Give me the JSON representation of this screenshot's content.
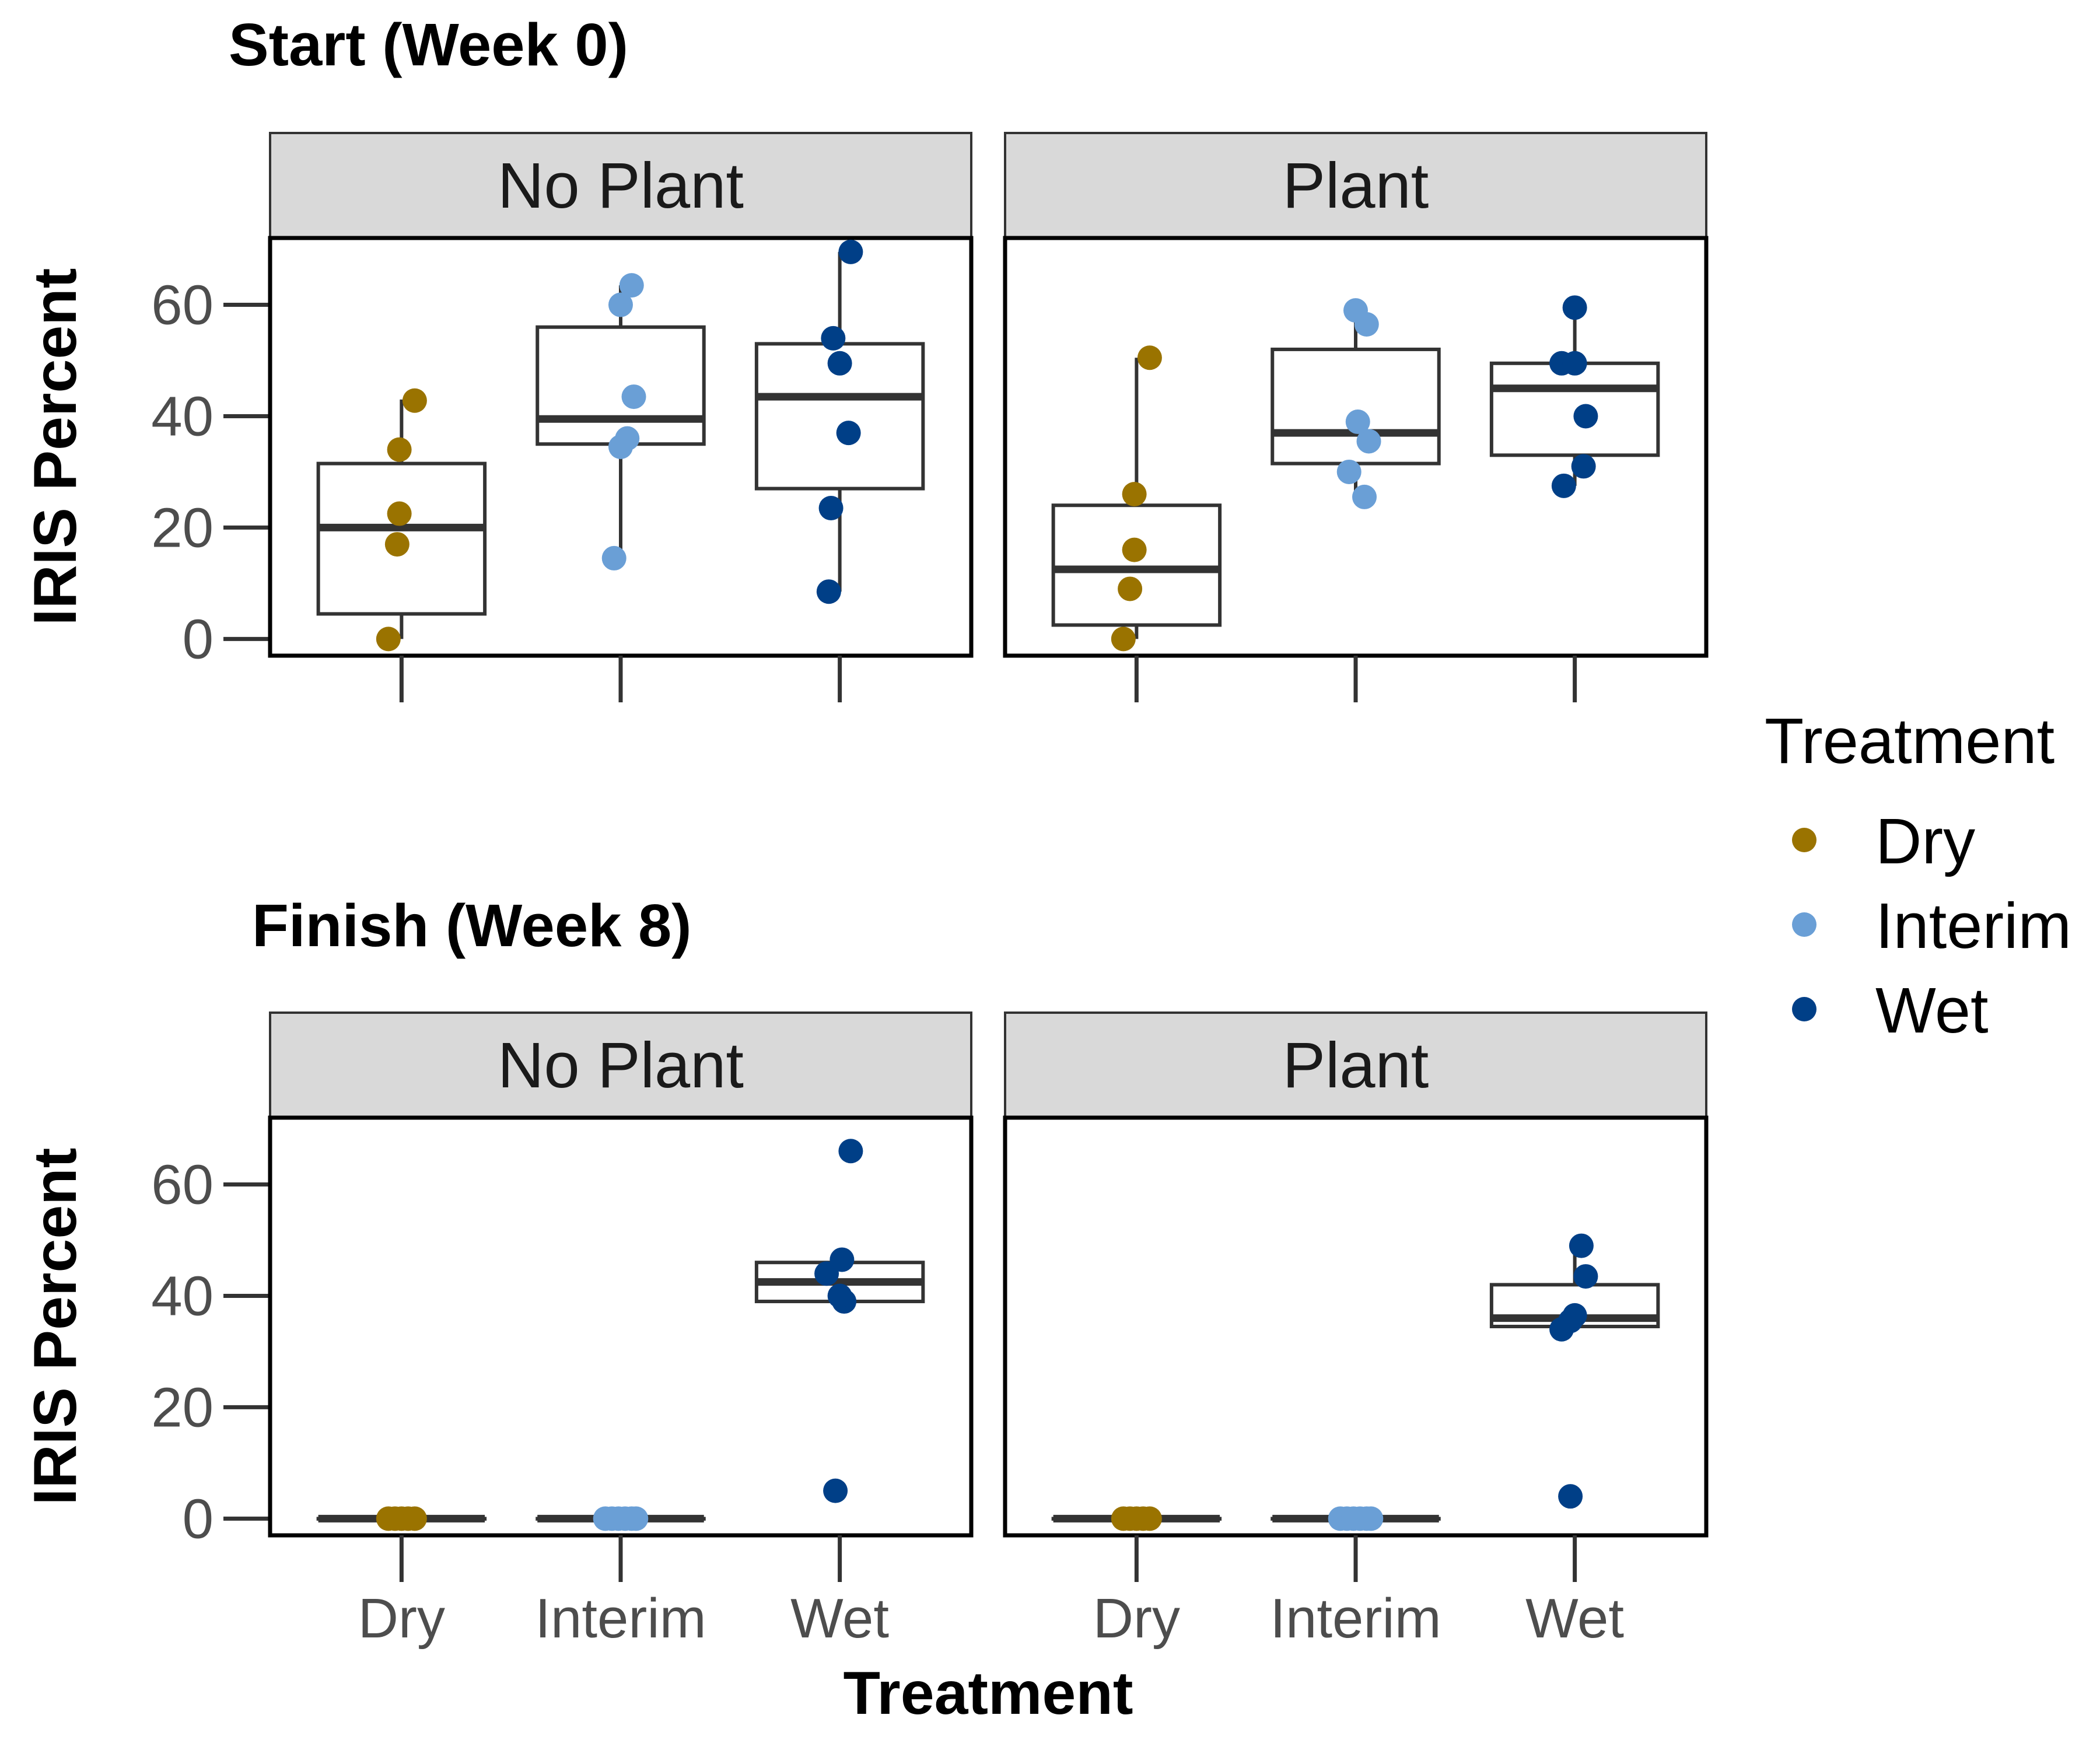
{
  "chart_data": {
    "type": "box",
    "y_axis_label": "IRIS Percent",
    "x_axis_label": "Treatment",
    "ylim": [
      -3,
      72
    ],
    "y_ticks": [
      0,
      20,
      40,
      60
    ],
    "categories": [
      "Dry",
      "Interim",
      "Wet"
    ],
    "legend": {
      "title": "Treatment",
      "placement": "right",
      "items": [
        {
          "label": "Dry",
          "color": "#9A7300"
        },
        {
          "label": "Interim",
          "color": "#6A9FD6"
        },
        {
          "label": "Wet",
          "color": "#003F87"
        }
      ]
    },
    "rows": [
      {
        "title": "Start (Week 0)",
        "panels": [
          {
            "strip": "No Plant",
            "groups": [
              {
                "category": "Dry",
                "box": {
                  "lower": 0,
                  "q1": 4.5,
                  "median": 20,
                  "q3": 31.5,
                  "upper": 43
                },
                "points": [
                  [
                    -0.06,
                    0
                  ],
                  [
                    -0.02,
                    17
                  ],
                  [
                    -0.01,
                    22.5
                  ],
                  [
                    -0.01,
                    34
                  ],
                  [
                    0.06,
                    42.8
                  ]
                ]
              },
              {
                "category": "Interim",
                "box": {
                  "lower": 14.5,
                  "q1": 35,
                  "median": 39.5,
                  "q3": 56,
                  "upper": 63.5
                },
                "points": [
                  [
                    -0.03,
                    14.5
                  ],
                  [
                    0.0,
                    34.5
                  ],
                  [
                    0.03,
                    36
                  ],
                  [
                    0.06,
                    43.5
                  ],
                  [
                    0.0,
                    60
                  ],
                  [
                    0.05,
                    63.5
                  ]
                ]
              },
              {
                "category": "Wet",
                "box": {
                  "lower": 8.5,
                  "q1": 27,
                  "median": 43.5,
                  "q3": 53,
                  "upper": 69.5
                },
                "points": [
                  [
                    -0.05,
                    8.5
                  ],
                  [
                    -0.04,
                    23.5
                  ],
                  [
                    0.04,
                    37
                  ],
                  [
                    0.0,
                    49.5
                  ],
                  [
                    -0.03,
                    54
                  ],
                  [
                    0.05,
                    69.5
                  ]
                ]
              }
            ]
          },
          {
            "strip": "Plant",
            "groups": [
              {
                "category": "Dry",
                "box": {
                  "lower": 0,
                  "q1": 2.5,
                  "median": 12.5,
                  "q3": 24,
                  "upper": 50.5
                },
                "points": [
                  [
                    -0.06,
                    0
                  ],
                  [
                    -0.03,
                    9
                  ],
                  [
                    -0.01,
                    16
                  ],
                  [
                    -0.01,
                    26
                  ],
                  [
                    0.06,
                    50.5
                  ]
                ]
              },
              {
                "category": "Interim",
                "box": {
                  "lower": 25.5,
                  "q1": 31.5,
                  "median": 37,
                  "q3": 52,
                  "upper": 59
                },
                "points": [
                  [
                    0.04,
                    25.5
                  ],
                  [
                    -0.03,
                    30
                  ],
                  [
                    0.06,
                    35.5
                  ],
                  [
                    0.01,
                    39
                  ],
                  [
                    0.05,
                    56.5
                  ],
                  [
                    0.0,
                    59
                  ]
                ]
              },
              {
                "category": "Wet",
                "box": {
                  "lower": 27.5,
                  "q1": 33,
                  "median": 45,
                  "q3": 49.5,
                  "upper": 59.5
                },
                "points": [
                  [
                    -0.05,
                    27.5
                  ],
                  [
                    0.04,
                    31
                  ],
                  [
                    0.05,
                    40
                  ],
                  [
                    -0.06,
                    49.5
                  ],
                  [
                    0.0,
                    49.5
                  ],
                  [
                    0.0,
                    59.5
                  ]
                ]
              }
            ]
          }
        ]
      },
      {
        "title": "Finish (Week 8)",
        "panels": [
          {
            "strip": "No Plant",
            "groups": [
              {
                "category": "Dry",
                "box": {
                  "lower": 0,
                  "q1": 0,
                  "median": 0,
                  "q3": 0,
                  "upper": 0
                },
                "points": [
                  [
                    -0.06,
                    0
                  ],
                  [
                    -0.03,
                    0
                  ],
                  [
                    0.0,
                    0
                  ],
                  [
                    0.03,
                    0
                  ],
                  [
                    0.06,
                    0
                  ]
                ]
              },
              {
                "category": "Interim",
                "box": {
                  "lower": 0,
                  "q1": 0,
                  "median": 0,
                  "q3": 0,
                  "upper": 0
                },
                "points": [
                  [
                    -0.07,
                    0
                  ],
                  [
                    -0.04,
                    0
                  ],
                  [
                    -0.01,
                    0
                  ],
                  [
                    0.02,
                    0
                  ],
                  [
                    0.05,
                    0
                  ],
                  [
                    0.07,
                    0
                  ]
                ]
              },
              {
                "category": "Wet",
                "box": {
                  "lower": 39,
                  "q1": 39,
                  "median": 42.5,
                  "q3": 46,
                  "upper": 46.5
                },
                "points": [
                  [
                    -0.02,
                    5
                  ],
                  [
                    0.02,
                    39
                  ],
                  [
                    0.0,
                    40
                  ],
                  [
                    -0.06,
                    44
                  ],
                  [
                    0.01,
                    46.5
                  ],
                  [
                    0.05,
                    66
                  ]
                ]
              }
            ]
          },
          {
            "strip": "Plant",
            "groups": [
              {
                "category": "Dry",
                "box": {
                  "lower": 0,
                  "q1": 0,
                  "median": 0,
                  "q3": 0,
                  "upper": 0
                },
                "points": [
                  [
                    -0.06,
                    0
                  ],
                  [
                    -0.03,
                    0
                  ],
                  [
                    0.0,
                    0
                  ],
                  [
                    0.03,
                    0
                  ],
                  [
                    0.06,
                    0
                  ]
                ]
              },
              {
                "category": "Interim",
                "box": {
                  "lower": 0,
                  "q1": 0,
                  "median": 0,
                  "q3": 0,
                  "upper": 0
                },
                "points": [
                  [
                    -0.07,
                    0
                  ],
                  [
                    -0.04,
                    0
                  ],
                  [
                    -0.01,
                    0
                  ],
                  [
                    0.02,
                    0
                  ],
                  [
                    0.05,
                    0
                  ],
                  [
                    0.07,
                    0
                  ]
                ]
              },
              {
                "category": "Wet",
                "box": {
                  "lower": 34.5,
                  "q1": 34.5,
                  "median": 36,
                  "q3": 42,
                  "upper": 49
                },
                "points": [
                  [
                    -0.02,
                    4
                  ],
                  [
                    -0.06,
                    34
                  ],
                  [
                    -0.02,
                    35.5
                  ],
                  [
                    0.0,
                    36.5
                  ],
                  [
                    0.05,
                    43.5
                  ],
                  [
                    0.03,
                    49
                  ]
                ]
              }
            ]
          }
        ]
      }
    ]
  }
}
